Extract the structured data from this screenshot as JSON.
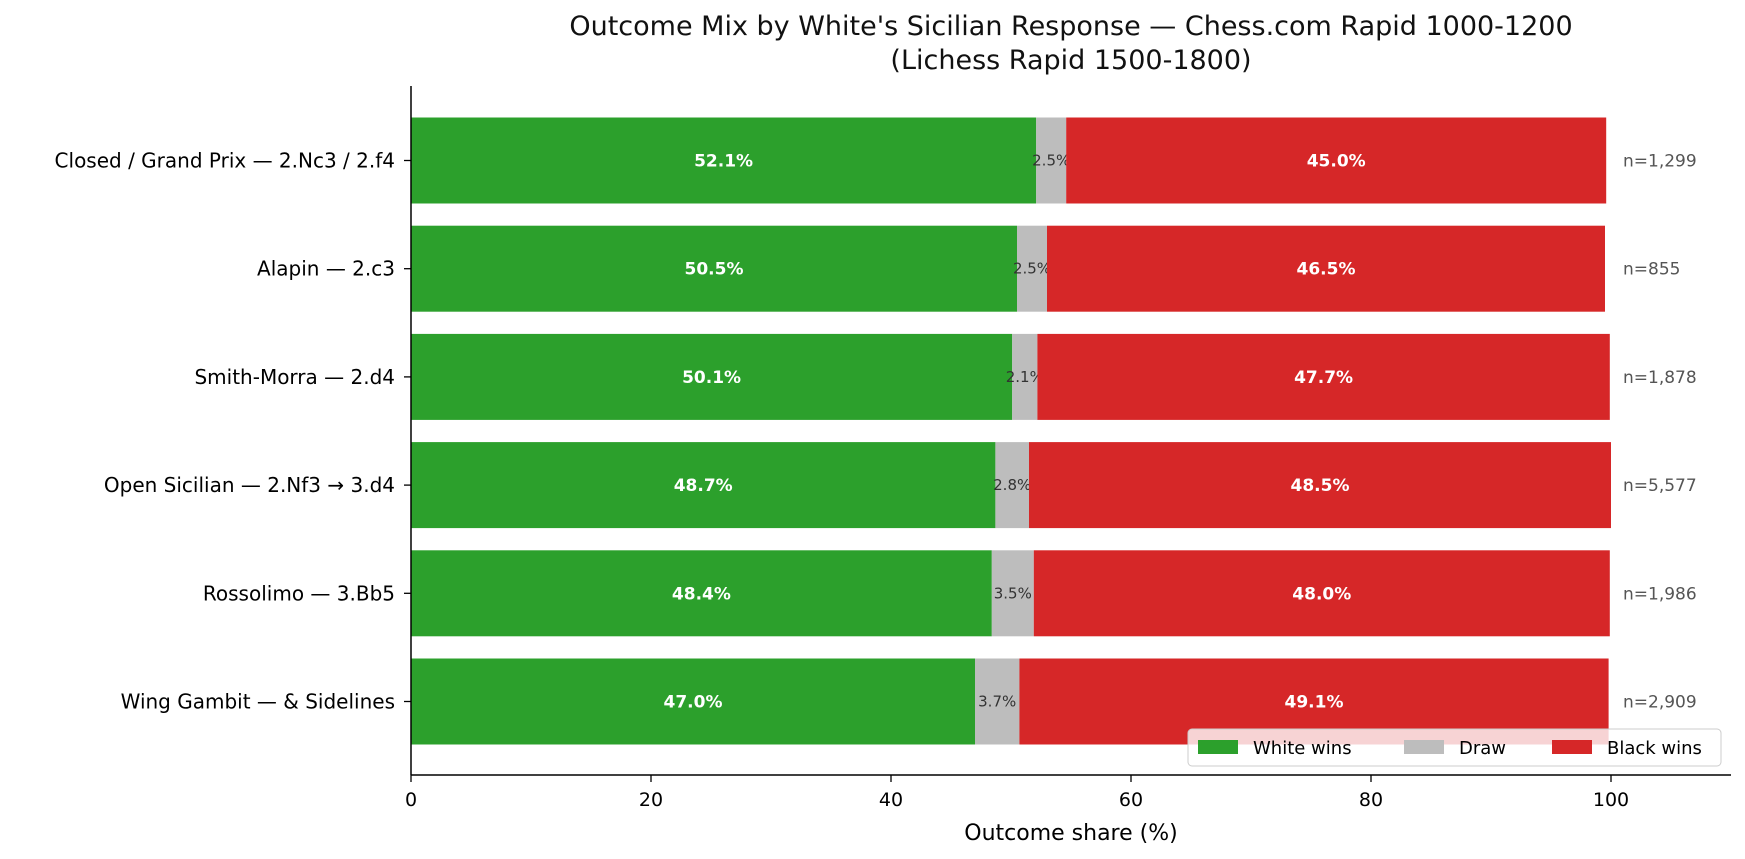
{
  "chart_data": {
    "type": "bar",
    "orientation": "horizontal",
    "stacked": true,
    "title": "Outcome Mix by White's Sicilian Response — Chess.com Rapid 1000-1200",
    "subtitle": "(Lichess Rapid 1500-1800)",
    "xlabel": "Outcome share (%)",
    "ylabel": "",
    "xlim": [
      0,
      110
    ],
    "xticks": [
      "0",
      "20",
      "40",
      "60",
      "80",
      "100"
    ],
    "categories": [
      "Closed / Grand Prix — 2.Nc3 / 2.f4",
      "Alapin — 2.c3",
      "Smith-Morra — 2.d4",
      "Open Sicilian — 2.Nf3 → 3.d4",
      "Rossolimo — 3.Bb5",
      "Wing Gambit — & Sidelines"
    ],
    "series": [
      {
        "name": "White wins",
        "color": "#2ca02c",
        "values": [
          52.1,
          50.5,
          50.1,
          48.7,
          48.4,
          47.0
        ],
        "labels": [
          "52.1%",
          "50.5%",
          "50.1%",
          "48.7%",
          "48.4%",
          "47.0%"
        ]
      },
      {
        "name": "Draw",
        "color": "#bdbdbd",
        "values": [
          2.5,
          2.5,
          2.1,
          2.8,
          3.5,
          3.7
        ],
        "labels": [
          "2.5%",
          "2.5%",
          "2.1%",
          "2.8%",
          "3.5%",
          "3.7%"
        ]
      },
      {
        "name": "Black wins",
        "color": "#d62728",
        "values": [
          45.0,
          46.5,
          47.7,
          48.5,
          48.0,
          49.1
        ],
        "labels": [
          "45.0%",
          "46.5%",
          "47.7%",
          "48.5%",
          "48.0%",
          "49.1%"
        ]
      }
    ],
    "annotations": [
      "n=1,299",
      "n=855",
      "n=1,878",
      "n=5,577",
      "n=1,986",
      "n=2,909"
    ],
    "legend": "bottom-right",
    "grid": false
  }
}
